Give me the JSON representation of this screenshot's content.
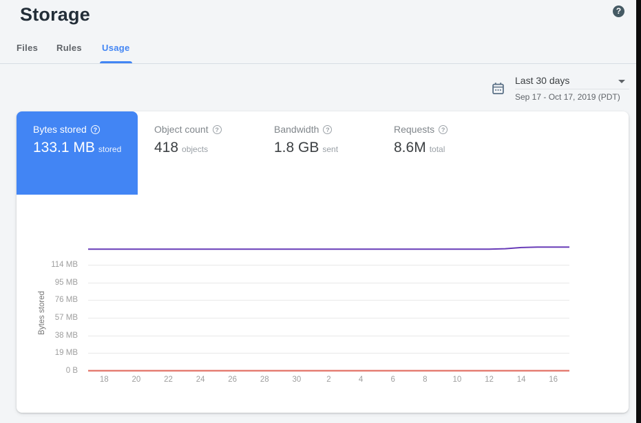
{
  "header": {
    "title": "Storage",
    "help_icon": "?"
  },
  "tabs": [
    {
      "label": "Files",
      "active": false
    },
    {
      "label": "Rules",
      "active": false
    },
    {
      "label": "Usage",
      "active": true
    }
  ],
  "date_range": {
    "label": "Last 30 days",
    "detail": "Sep 17 - Oct 17, 2019 (PDT)"
  },
  "metrics": [
    {
      "label": "Bytes stored",
      "help": "?",
      "value": "133.1 MB",
      "unit": "stored",
      "active": true
    },
    {
      "label": "Object count",
      "help": "?",
      "value": "418",
      "unit": "objects",
      "active": false
    },
    {
      "label": "Bandwidth",
      "help": "?",
      "value": "1.8 GB",
      "unit": "sent",
      "active": false
    },
    {
      "label": "Requests",
      "help": "?",
      "value": "8.6M",
      "unit": "total",
      "active": false
    }
  ],
  "chart_data": {
    "type": "line",
    "title": "",
    "ylabel": "Bytes stored",
    "xlabel": "",
    "x_range": "Sep 17 - Oct 17, 2019",
    "grid": true,
    "legend": false,
    "ylim_mb": [
      0,
      147
    ],
    "y_ticks": [
      {
        "label": "114 MB",
        "value_mb": 114
      },
      {
        "label": "95 MB",
        "value_mb": 95
      },
      {
        "label": "76 MB",
        "value_mb": 76
      },
      {
        "label": "57 MB",
        "value_mb": 57
      },
      {
        "label": "38 MB",
        "value_mb": 38
      },
      {
        "label": "19 MB",
        "value_mb": 19
      },
      {
        "label": "0 B",
        "value_mb": 0
      }
    ],
    "x_ticks": [
      {
        "label": "18",
        "pos": 1
      },
      {
        "label": "20",
        "pos": 3
      },
      {
        "label": "22",
        "pos": 5
      },
      {
        "label": "24",
        "pos": 7
      },
      {
        "label": "26",
        "pos": 9
      },
      {
        "label": "28",
        "pos": 11
      },
      {
        "label": "30",
        "pos": 13
      },
      {
        "label": "2",
        "pos": 15
      },
      {
        "label": "4",
        "pos": 17
      },
      {
        "label": "6",
        "pos": 19
      },
      {
        "label": "8",
        "pos": 21
      },
      {
        "label": "10",
        "pos": 23
      },
      {
        "label": "12",
        "pos": 25
      },
      {
        "label": "14",
        "pos": 27
      },
      {
        "label": "16",
        "pos": 29
      }
    ],
    "series": [
      {
        "name": "Bytes stored",
        "color": "#673ab7",
        "stroke_width": 2,
        "values_mb": [
          130.8,
          130.8,
          130.8,
          130.8,
          130.8,
          130.8,
          130.8,
          130.8,
          130.8,
          130.8,
          130.8,
          130.8,
          130.8,
          130.8,
          130.8,
          130.8,
          130.8,
          130.8,
          130.8,
          130.8,
          130.8,
          130.8,
          130.8,
          130.8,
          130.8,
          130.8,
          131.3,
          132.6,
          133.0,
          133.1,
          133.1
        ]
      },
      {
        "name": "Zero baseline",
        "color": "#e57d72",
        "stroke_width": 2.4,
        "values_mb": [
          0,
          0,
          0,
          0,
          0,
          0,
          0,
          0,
          0,
          0,
          0,
          0,
          0,
          0,
          0,
          0,
          0,
          0,
          0,
          0,
          0,
          0,
          0,
          0,
          0,
          0,
          0,
          0,
          0,
          0,
          0
        ]
      }
    ]
  },
  "colors": {
    "accent_blue": "#4285f4",
    "active_card_bg": "#4285f4",
    "line_purple": "#673ab7",
    "line_red": "#e57d72",
    "page_bg": "#f3f5f7"
  }
}
